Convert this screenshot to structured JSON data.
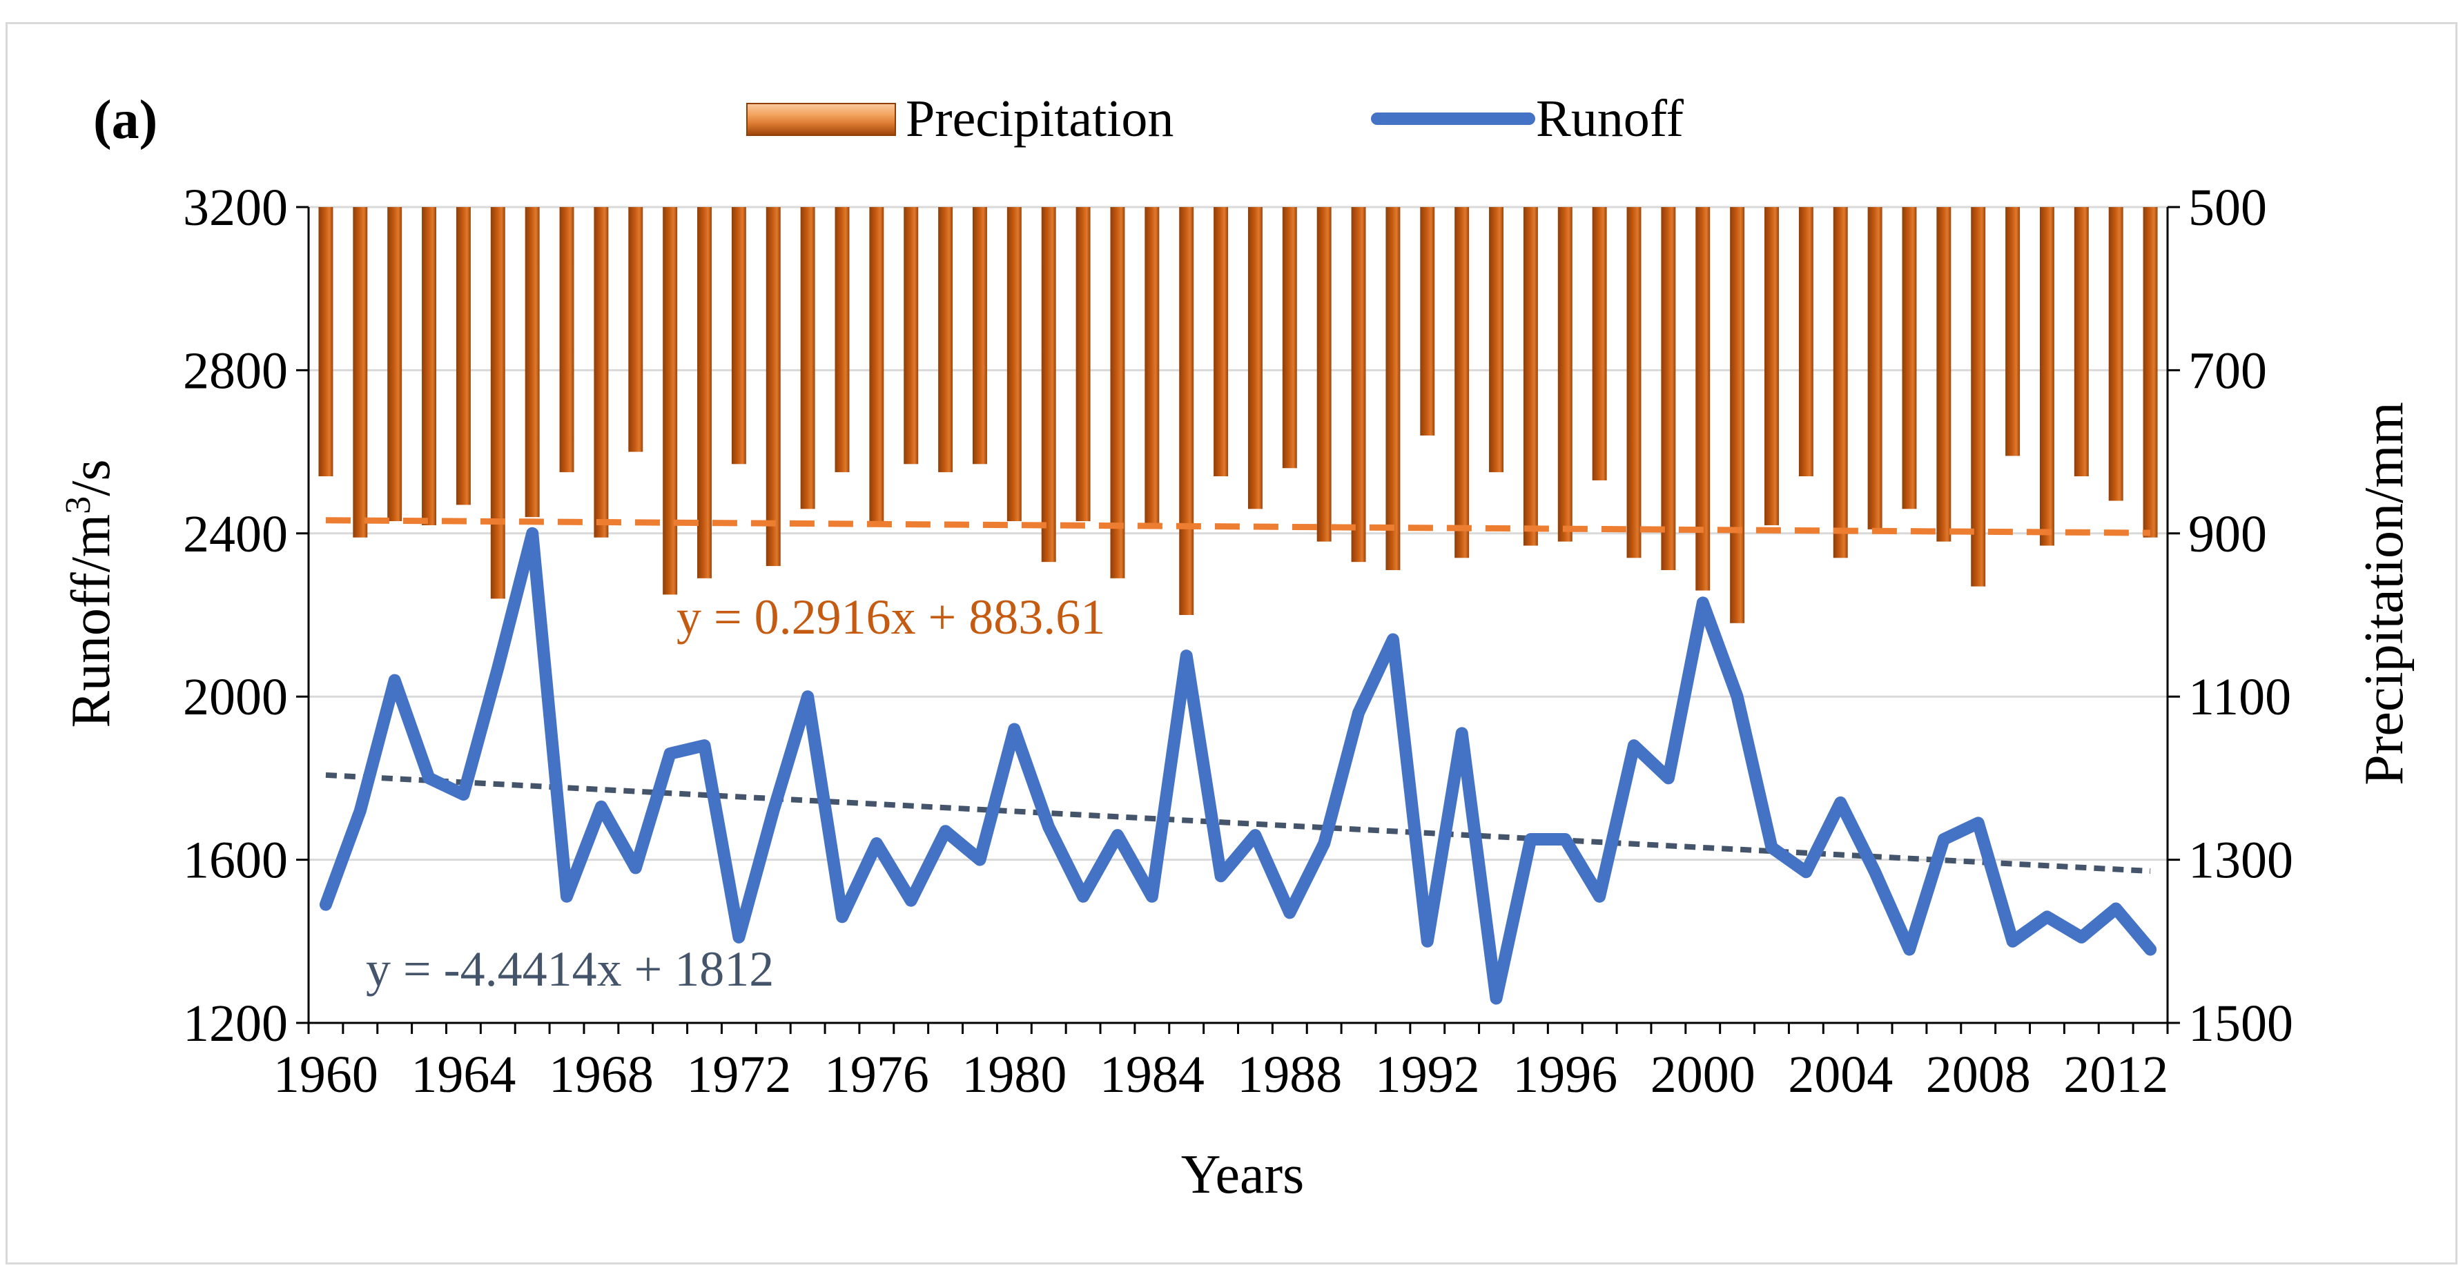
{
  "chart_data": {
    "type": "line",
    "panel_label": "(a)",
    "xlabel": "Years",
    "ylabel_left": "Runoff/m³/s",
    "ylabel_left_parts": {
      "main": "Runoff/m",
      "sup": "3",
      "tail": "/s"
    },
    "ylabel_right": "Precipitation/mm",
    "left_axis": {
      "min": 1200,
      "max": 3200,
      "ticks": [
        1200,
        1600,
        2000,
        2400,
        2800,
        3200
      ]
    },
    "right_axis": {
      "min": 500,
      "max": 1500,
      "reversed": true,
      "ticks": [
        500,
        700,
        900,
        1100,
        1300,
        1500
      ]
    },
    "x_ticks": [
      1960,
      1964,
      1968,
      1972,
      1976,
      1980,
      1984,
      1988,
      1992,
      1996,
      2000,
      2004,
      2008,
      2012
    ],
    "years": [
      1960,
      1961,
      1962,
      1963,
      1964,
      1965,
      1966,
      1967,
      1968,
      1969,
      1970,
      1971,
      1972,
      1973,
      1974,
      1975,
      1976,
      1977,
      1978,
      1979,
      1980,
      1981,
      1982,
      1983,
      1984,
      1985,
      1986,
      1987,
      1988,
      1989,
      1990,
      1991,
      1992,
      1993,
      1994,
      1995,
      1996,
      1997,
      1998,
      1999,
      2000,
      2001,
      2002,
      2003,
      2004,
      2005,
      2006,
      2007,
      2008,
      2009,
      2010,
      2011,
      2012,
      2013
    ],
    "series": [
      {
        "name": "Precipitation",
        "axis": "right",
        "style": "bar",
        "values": [
          830,
          905,
          885,
          890,
          865,
          980,
          880,
          825,
          905,
          800,
          975,
          955,
          815,
          940,
          870,
          825,
          885,
          815,
          825,
          815,
          885,
          935,
          885,
          955,
          890,
          1000,
          830,
          870,
          820,
          910,
          935,
          945,
          780,
          930,
          825,
          915,
          910,
          835,
          930,
          945,
          970,
          1010,
          890,
          830,
          930,
          895,
          870,
          910,
          965,
          805,
          915,
          830,
          860,
          905
        ]
      },
      {
        "name": "Runoff",
        "axis": "left",
        "style": "line",
        "values": [
          1490,
          1720,
          2040,
          1800,
          1760,
          2070,
          2400,
          1510,
          1730,
          1580,
          1860,
          1880,
          1410,
          1720,
          2000,
          1460,
          1640,
          1500,
          1670,
          1600,
          1920,
          1680,
          1510,
          1660,
          1510,
          2100,
          1560,
          1660,
          1470,
          1640,
          1960,
          2140,
          1400,
          1910,
          1260,
          1650,
          1650,
          1510,
          1880,
          1800,
          2230,
          2000,
          1630,
          1570,
          1740,
          1570,
          1380,
          1650,
          1690,
          1400,
          1460,
          1410,
          1480,
          1380
        ]
      }
    ],
    "trendlines": [
      {
        "series": "Precipitation",
        "equation": "y = 0.2916x + 883.61",
        "slope": 0.2916,
        "intercept": 883.61
      },
      {
        "series": "Runoff",
        "equation": "y = -4.4414x + 1812",
        "slope": -4.4414,
        "intercept": 1812
      }
    ],
    "legend": [
      "Precipitation",
      "Runoff"
    ],
    "legend_position": "top-center",
    "grid": true
  },
  "colors": {
    "bar_fill": "#c55a11",
    "bar_highlight": "#f4b183",
    "runoff_line": "#4472c4",
    "precip_trend": "#ed7d31",
    "runoff_trend": "#44546a",
    "precip_eq_text": "#c55a11",
    "runoff_eq_text": "#44546a",
    "grid": "#d9d9d9"
  }
}
